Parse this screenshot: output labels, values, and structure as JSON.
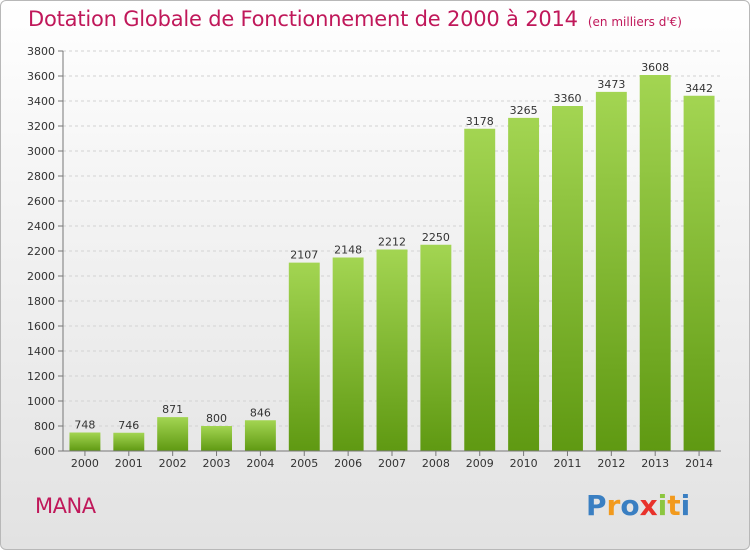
{
  "header": {
    "title": "Dotation Globale de Fonctionnement de 2000 à 2014",
    "unit": "(en milliers d'€)"
  },
  "footer": {
    "town": "MANA",
    "logo_letters": [
      "P",
      "r",
      "o",
      "x",
      "i",
      "t",
      "i"
    ],
    "logo_colors": [
      "#3a7fc2",
      "#f29a1d",
      "#3a7fc2",
      "#e8322b",
      "#8cc63f",
      "#f29a1d",
      "#3a7fc2"
    ]
  },
  "colors": {
    "title": "#c0185a",
    "bar_top": "#a3d552",
    "bar_bottom": "#5f9912"
  },
  "chart_data": {
    "type": "bar",
    "categories": [
      "2000",
      "2001",
      "2002",
      "2003",
      "2004",
      "2005",
      "2006",
      "2007",
      "2008",
      "2009",
      "2010",
      "2011",
      "2012",
      "2013",
      "2014"
    ],
    "values": [
      748,
      746,
      871,
      800,
      846,
      2107,
      2148,
      2212,
      2250,
      3178,
      3265,
      3360,
      3473,
      3608,
      3442
    ],
    "yticks": [
      600,
      800,
      1000,
      1200,
      1400,
      1600,
      1800,
      2000,
      2200,
      2400,
      2600,
      2800,
      3000,
      3200,
      3400,
      3600,
      3800
    ],
    "ylim": [
      600,
      3800
    ],
    "grid": "horizontal",
    "data_labels": true
  }
}
